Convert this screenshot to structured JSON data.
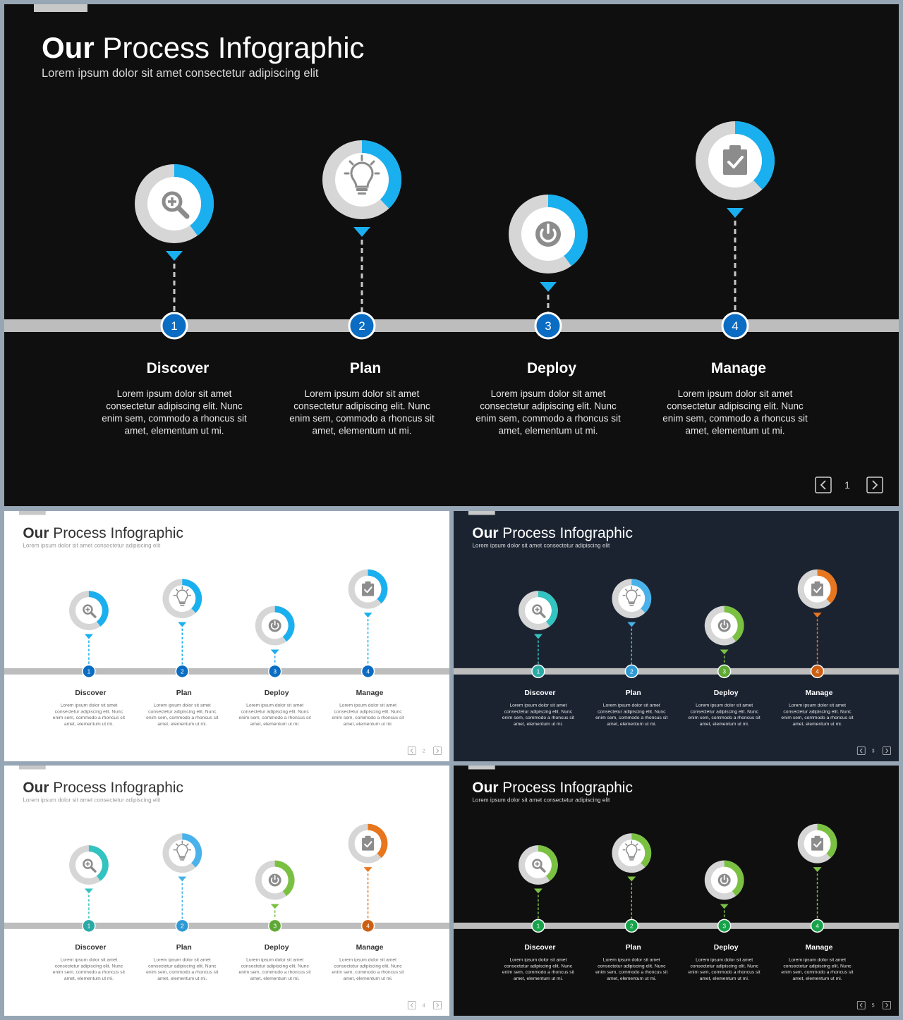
{
  "title": {
    "bold": "Our",
    "rest": " Process Infographic"
  },
  "subtitle": "Lorem ipsum dolor sit amet consectetur adipiscing elit",
  "steps": [
    {
      "number": "1",
      "label": "Discover",
      "icon": "search-plus-icon"
    },
    {
      "number": "2",
      "label": "Plan",
      "icon": "lightbulb-icon"
    },
    {
      "number": "3",
      "label": "Deploy",
      "icon": "power-icon"
    },
    {
      "number": "4",
      "label": "Manage",
      "icon": "clipboard-check-icon"
    }
  ],
  "description_lines": [
    "Lorem ipsum dolor sit amet",
    "consectetur adipiscing elit. Nunc",
    "enim sem, commodo a rhoncus sit",
    "amet, elementum ut mi."
  ],
  "slides": [
    {
      "page": "1",
      "theme": "black",
      "bg": "#0f0f0f",
      "step_colors": [
        "#1ab0ef",
        "#1ab0ef",
        "#1ab0ef",
        "#1ab0ef"
      ],
      "badge_colors": [
        "#0a6cc2",
        "#0a6cc2",
        "#0a6cc2",
        "#0a6cc2"
      ],
      "ring_progress": [
        0.4,
        0.38,
        0.4,
        0.38
      ]
    },
    {
      "page": "2",
      "theme": "white",
      "bg": "#ffffff",
      "step_colors": [
        "#1ab0ef",
        "#1ab0ef",
        "#1ab0ef",
        "#1ab0ef"
      ],
      "badge_colors": [
        "#0a6cc2",
        "#0a6cc2",
        "#0a6cc2",
        "#0a6cc2"
      ],
      "ring_progress": [
        0.4,
        0.38,
        0.4,
        0.38
      ]
    },
    {
      "page": "3",
      "theme": "navy",
      "bg": "#1b2331",
      "step_colors": [
        "#33c3c0",
        "#4ab2ea",
        "#7ac142",
        "#e8761e"
      ],
      "badge_colors": [
        "#2aa9a5",
        "#2f99d4",
        "#5ea935",
        "#cc5f12"
      ],
      "ring_progress": [
        0.4,
        0.38,
        0.4,
        0.38
      ]
    },
    {
      "page": "4",
      "theme": "white",
      "bg": "#ffffff",
      "step_colors": [
        "#33c3c0",
        "#4ab2ea",
        "#7ac142",
        "#e8761e"
      ],
      "badge_colors": [
        "#2aa9a5",
        "#2f99d4",
        "#5ea935",
        "#cc5f12"
      ],
      "ring_progress": [
        0.4,
        0.38,
        0.4,
        0.38
      ]
    },
    {
      "page": "5",
      "theme": "black",
      "bg": "#0f0f0f",
      "step_colors": [
        "#7ac142",
        "#7ac142",
        "#7ac142",
        "#7ac142"
      ],
      "badge_colors": [
        "#16a34a",
        "#16a34a",
        "#16a34a",
        "#16a34a"
      ],
      "ring_progress": [
        0.4,
        0.38,
        0.4,
        0.38
      ]
    }
  ]
}
